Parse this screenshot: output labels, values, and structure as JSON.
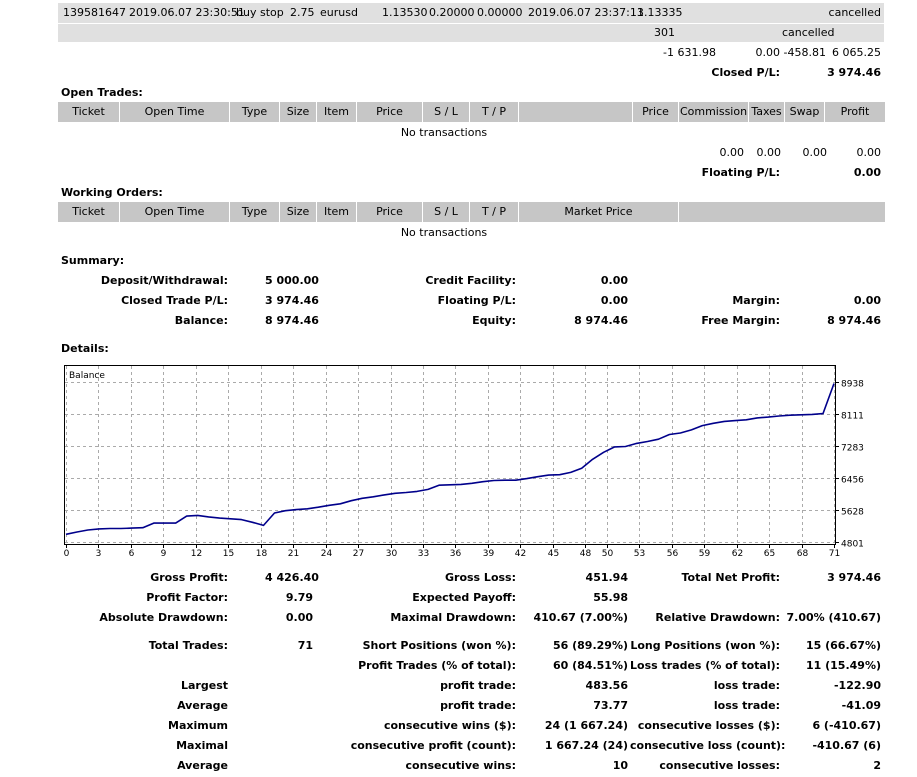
{
  "order_row": {
    "ticket": "139581647",
    "open_time": "2019.06.07 23:30:51",
    "type": "buy stop",
    "size": "2.75",
    "item": "eurusd",
    "price": "1.13530",
    "sl": "0.20000",
    "tp": "0.00000",
    "close_time": "2019.06.07 23:37:13",
    "close_price": "1.13335",
    "status": "cancelled",
    "sub_value": "301",
    "sub_status": "cancelled"
  },
  "closed_totals": {
    "commission": "-1 631.98",
    "taxes": "0.00",
    "swap": "-458.81",
    "profit": "6 065.25",
    "label": "Closed P/L:",
    "value": "3 974.46"
  },
  "open_trades": {
    "title": "Open Trades:",
    "headers": {
      "ticket": "Ticket",
      "open_time": "Open Time",
      "type": "Type",
      "size": "Size",
      "item": "Item",
      "price": "Price",
      "sl": "S / L",
      "tp": "T / P",
      "price2": "Price",
      "commission": "Commission",
      "taxes": "Taxes",
      "swap": "Swap",
      "profit": "Profit"
    },
    "empty": "No transactions",
    "totals": {
      "commission": "0.00",
      "taxes": "0.00",
      "swap": "0.00",
      "profit": "0.00"
    },
    "floating_label": "Floating P/L:",
    "floating_value": "0.00"
  },
  "working_orders": {
    "title": "Working Orders:",
    "headers": {
      "ticket": "Ticket",
      "open_time": "Open Time",
      "type": "Type",
      "size": "Size",
      "item": "Item",
      "price": "Price",
      "sl": "S / L",
      "tp": "T / P",
      "market_price": "Market Price"
    },
    "empty": "No transactions"
  },
  "summary": {
    "title": "Summary:",
    "deposit_label": "Deposit/Withdrawal:",
    "deposit": "5 000.00",
    "closed_label": "Closed Trade P/L:",
    "closed": "3 974.46",
    "balance_label": "Balance:",
    "balance": "8 974.46",
    "credit_label": "Credit Facility:",
    "credit": "0.00",
    "floating_label": "Floating P/L:",
    "floating": "0.00",
    "equity_label": "Equity:",
    "equity": "8 974.46",
    "margin_label": "Margin:",
    "margin": "0.00",
    "free_margin_label": "Free Margin:",
    "free_margin": "8 974.46"
  },
  "details": {
    "title": "Details:"
  },
  "chart_data": {
    "type": "line",
    "legend": "Balance",
    "x_ticks": [
      "0",
      "3",
      "6",
      "9",
      "12",
      "15",
      "18",
      "21",
      "24",
      "27",
      "30",
      "33",
      "36",
      "39",
      "42",
      "45",
      "48",
      "50",
      "53",
      "56",
      "59",
      "62",
      "65",
      "68",
      "71"
    ],
    "y_ticks": [
      "8938",
      "8111",
      "7283",
      "6456",
      "5628",
      "4801"
    ],
    "ylim": [
      4801,
      8938
    ],
    "xlim": [
      0,
      71
    ],
    "series": [
      {
        "values": [
          5000,
          5060,
          5110,
          5140,
          5150,
          5150,
          5160,
          5170,
          5290,
          5290,
          5290,
          5470,
          5490,
          5450,
          5420,
          5400,
          5380,
          5310,
          5230,
          5550,
          5610,
          5640,
          5660,
          5700,
          5750,
          5790,
          5870,
          5930,
          5970,
          6020,
          6060,
          6080,
          6110,
          6160,
          6270,
          6280,
          6290,
          6320,
          6360,
          6390,
          6400,
          6400,
          6440,
          6490,
          6530,
          6540,
          6600,
          6710,
          6940,
          7120,
          7260,
          7270,
          7350,
          7400,
          7460,
          7580,
          7620,
          7700,
          7810,
          7870,
          7920,
          7940,
          7960,
          8010,
          8030,
          8060,
          8080,
          8090,
          8100,
          8120,
          8900
        ]
      }
    ]
  },
  "stats": {
    "gross_profit_label": "Gross Profit:",
    "gross_profit": "4 426.40",
    "gross_loss_label": "Gross Loss:",
    "gross_loss": "451.94",
    "total_net_label": "Total Net Profit:",
    "total_net": "3 974.46",
    "profit_factor_label": "Profit Factor:",
    "profit_factor": "9.79",
    "expected_payoff_label": "Expected Payoff:",
    "expected_payoff": "55.98",
    "abs_dd_label": "Absolute Drawdown:",
    "abs_dd": "0.00",
    "max_dd_label": "Maximal Drawdown:",
    "max_dd": "410.67 (7.00%)",
    "rel_dd_label": "Relative Drawdown:",
    "rel_dd": "7.00% (410.67)",
    "total_trades_label": "Total Trades:",
    "total_trades": "71",
    "short_label": "Short Positions (won %):",
    "short": "56 (89.29%)",
    "long_label": "Long Positions (won %):",
    "long": "15 (66.67%)",
    "profit_trades_label": "Profit Trades (% of total):",
    "profit_trades": "60 (84.51%)",
    "loss_trades_label": "Loss trades (% of total):",
    "loss_trades": "11 (15.49%)",
    "largest_label": "Largest",
    "largest_profit_label": "profit trade:",
    "largest_profit": "483.56",
    "largest_loss_label": "loss trade:",
    "largest_loss": "-122.90",
    "average_label": "Average",
    "average_profit_label": "profit trade:",
    "average_profit": "73.77",
    "average_loss_label": "loss trade:",
    "average_loss": "-41.09",
    "maximum_label": "Maximum",
    "max_cons_wins_label": "consecutive wins ($):",
    "max_cons_wins": "24 (1 667.24)",
    "max_cons_losses_label": "consecutive losses ($):",
    "max_cons_losses": "6 (-410.67)",
    "maximal_label": "Maximal",
    "maximal_profit_label": "consecutive profit (count):",
    "maximal_profit": "1 667.24 (24)",
    "maximal_loss_label": "consecutive loss (count):",
    "maximal_loss": "-410.67 (6)",
    "average2_label": "Average",
    "avg_cons_wins_label": "consecutive wins:",
    "avg_cons_wins": "10",
    "avg_cons_losses_label": "consecutive losses:",
    "avg_cons_losses": "2"
  }
}
